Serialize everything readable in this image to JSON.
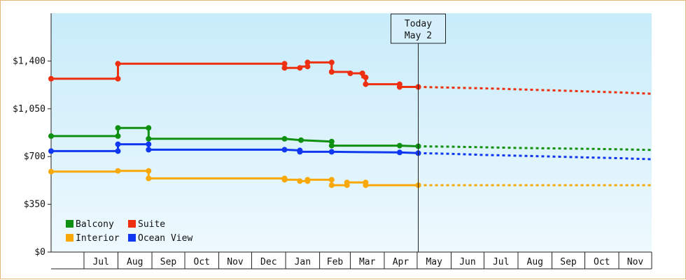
{
  "chart_data": {
    "type": "line",
    "title": "",
    "xlabel": "",
    "ylabel": "",
    "ylim": [
      0,
      1750
    ],
    "xlim": [
      "2024-06-01",
      "2025-12-01"
    ],
    "grid": false,
    "legend_position": "bottom-left",
    "y_ticks": [
      {
        "value": 0,
        "label": "$0"
      },
      {
        "value": 350,
        "label": "$350"
      },
      {
        "value": 700,
        "label": "$700"
      },
      {
        "value": 1050,
        "label": "$1,050"
      },
      {
        "value": 1400,
        "label": "$1,400"
      }
    ],
    "month_labels": [
      {
        "label": "Jul",
        "start": "2024-07-01",
        "end": "2024-08-01"
      },
      {
        "label": "Aug",
        "start": "2024-08-01",
        "end": "2024-09-01"
      },
      {
        "label": "Sep",
        "start": "2024-09-01",
        "end": "2024-10-01"
      },
      {
        "label": "Oct",
        "start": "2024-10-01",
        "end": "2024-11-01"
      },
      {
        "label": "Nov",
        "start": "2024-11-01",
        "end": "2024-12-01"
      },
      {
        "label": "Dec",
        "start": "2024-12-01",
        "end": "2025-01-01"
      },
      {
        "label": "Jan",
        "start": "2025-01-01",
        "end": "2025-02-01"
      },
      {
        "label": "Feb",
        "start": "2025-02-01",
        "end": "2025-03-01"
      },
      {
        "label": "Mar",
        "start": "2025-03-01",
        "end": "2025-04-01"
      },
      {
        "label": "Apr",
        "start": "2025-04-01",
        "end": "2025-05-01"
      },
      {
        "label": "May",
        "start": "2025-05-01",
        "end": "2025-06-01"
      },
      {
        "label": "Jun",
        "start": "2025-06-01",
        "end": "2025-07-01"
      },
      {
        "label": "Jul",
        "start": "2025-07-01",
        "end": "2025-08-01"
      },
      {
        "label": "Aug",
        "start": "2025-08-01",
        "end": "2025-09-01"
      },
      {
        "label": "Sep",
        "start": "2025-09-01",
        "end": "2025-10-01"
      },
      {
        "label": "Oct",
        "start": "2025-10-01",
        "end": "2025-11-01"
      },
      {
        "label": "Nov",
        "start": "2025-11-01",
        "end": "2025-12-01"
      }
    ],
    "today": {
      "line1": "Today",
      "line2": "May 2",
      "date": "2025-05-02"
    },
    "series": [
      {
        "name": "Balcony",
        "color": "#109010",
        "points": [
          [
            "2024-06-01",
            850
          ],
          [
            "2024-08-01",
            850
          ],
          [
            "2024-08-01",
            910
          ],
          [
            "2024-08-29",
            910
          ],
          [
            "2024-08-29",
            830
          ],
          [
            "2024-12-31",
            830
          ],
          [
            "2025-01-15",
            820
          ],
          [
            "2025-02-12",
            810
          ],
          [
            "2025-02-12",
            780
          ],
          [
            "2025-04-15",
            780
          ],
          [
            "2025-05-02",
            775
          ]
        ],
        "markers": [
          [
            "2024-06-01",
            850
          ],
          [
            "2024-08-01",
            850
          ],
          [
            "2024-08-01",
            910
          ],
          [
            "2024-08-29",
            910
          ],
          [
            "2024-08-29",
            830
          ],
          [
            "2024-12-31",
            830
          ],
          [
            "2025-01-15",
            820
          ],
          [
            "2025-02-12",
            810
          ],
          [
            "2025-02-12",
            780
          ],
          [
            "2025-04-15",
            780
          ],
          [
            "2025-05-02",
            775
          ]
        ],
        "forecast": [
          [
            "2025-05-02",
            775
          ],
          [
            "2025-06-01",
            772
          ],
          [
            "2025-07-01",
            768
          ],
          [
            "2025-08-01",
            763
          ],
          [
            "2025-09-01",
            760
          ],
          [
            "2025-10-01",
            757
          ],
          [
            "2025-11-01",
            753
          ],
          [
            "2025-12-01",
            748
          ]
        ]
      },
      {
        "name": "Suite",
        "color": "#ee3010",
        "points": [
          [
            "2024-06-01",
            1270
          ],
          [
            "2024-08-01",
            1270
          ],
          [
            "2024-08-01",
            1380
          ],
          [
            "2024-12-31",
            1380
          ],
          [
            "2024-12-31",
            1350
          ],
          [
            "2025-01-14",
            1350
          ],
          [
            "2025-01-14",
            1360
          ],
          [
            "2025-01-21",
            1360
          ],
          [
            "2025-01-21",
            1390
          ],
          [
            "2025-02-12",
            1390
          ],
          [
            "2025-02-12",
            1320
          ],
          [
            "2025-03-01",
            1320
          ],
          [
            "2025-03-01",
            1310
          ],
          [
            "2025-03-12",
            1310
          ],
          [
            "2025-03-12",
            1280
          ],
          [
            "2025-03-15",
            1280
          ],
          [
            "2025-03-15",
            1230
          ],
          [
            "2025-04-15",
            1230
          ],
          [
            "2025-04-15",
            1210
          ],
          [
            "2025-05-02",
            1210
          ]
        ],
        "markers": [
          [
            "2024-06-01",
            1270
          ],
          [
            "2024-08-01",
            1270
          ],
          [
            "2024-08-01",
            1380
          ],
          [
            "2024-12-31",
            1380
          ],
          [
            "2024-12-31",
            1350
          ],
          [
            "2025-01-14",
            1350
          ],
          [
            "2025-01-21",
            1360
          ],
          [
            "2025-01-21",
            1390
          ],
          [
            "2025-02-12",
            1390
          ],
          [
            "2025-02-12",
            1320
          ],
          [
            "2025-03-01",
            1310
          ],
          [
            "2025-03-12",
            1310
          ],
          [
            "2025-03-15",
            1280
          ],
          [
            "2025-03-15",
            1230
          ],
          [
            "2025-04-15",
            1230
          ],
          [
            "2025-04-15",
            1210
          ],
          [
            "2025-05-02",
            1210
          ]
        ],
        "forecast": [
          [
            "2025-05-02",
            1210
          ],
          [
            "2025-06-01",
            1205
          ],
          [
            "2025-07-01",
            1200
          ],
          [
            "2025-08-01",
            1192
          ],
          [
            "2025-09-01",
            1185
          ],
          [
            "2025-10-01",
            1178
          ],
          [
            "2025-11-01",
            1170
          ],
          [
            "2025-12-01",
            1160
          ]
        ]
      },
      {
        "name": "Interior",
        "color": "#f8a808",
        "points": [
          [
            "2024-06-01",
            590
          ],
          [
            "2024-08-01",
            590
          ],
          [
            "2024-08-01",
            595
          ],
          [
            "2024-08-29",
            595
          ],
          [
            "2024-08-29",
            540
          ],
          [
            "2024-12-31",
            540
          ],
          [
            "2024-12-31",
            530
          ],
          [
            "2025-01-14",
            530
          ],
          [
            "2025-01-14",
            520
          ],
          [
            "2025-01-21",
            520
          ],
          [
            "2025-01-21",
            530
          ],
          [
            "2025-02-12",
            530
          ],
          [
            "2025-02-12",
            490
          ],
          [
            "2025-02-26",
            490
          ],
          [
            "2025-02-26",
            510
          ],
          [
            "2025-03-15",
            510
          ],
          [
            "2025-03-15",
            490
          ],
          [
            "2025-05-02",
            490
          ]
        ],
        "markers": [
          [
            "2024-06-01",
            590
          ],
          [
            "2024-08-01",
            595
          ],
          [
            "2024-08-29",
            595
          ],
          [
            "2024-08-29",
            540
          ],
          [
            "2024-12-31",
            540
          ],
          [
            "2024-12-31",
            530
          ],
          [
            "2025-01-14",
            520
          ],
          [
            "2025-01-21",
            520
          ],
          [
            "2025-01-21",
            530
          ],
          [
            "2025-02-12",
            530
          ],
          [
            "2025-02-12",
            490
          ],
          [
            "2025-02-26",
            490
          ],
          [
            "2025-02-26",
            510
          ],
          [
            "2025-03-15",
            510
          ],
          [
            "2025-03-15",
            490
          ],
          [
            "2025-05-02",
            490
          ]
        ],
        "forecast": [
          [
            "2025-05-02",
            490
          ],
          [
            "2025-12-01",
            490
          ]
        ]
      },
      {
        "name": "Ocean View",
        "color": "#1038f0",
        "points": [
          [
            "2024-06-01",
            740
          ],
          [
            "2024-08-01",
            740
          ],
          [
            "2024-08-01",
            790
          ],
          [
            "2024-08-29",
            790
          ],
          [
            "2024-08-29",
            750
          ],
          [
            "2024-12-31",
            750
          ],
          [
            "2025-01-14",
            745
          ],
          [
            "2025-01-14",
            735
          ],
          [
            "2025-02-12",
            735
          ],
          [
            "2025-04-15",
            730
          ],
          [
            "2025-05-02",
            725
          ]
        ],
        "markers": [
          [
            "2024-06-01",
            740
          ],
          [
            "2024-08-01",
            740
          ],
          [
            "2024-08-01",
            790
          ],
          [
            "2024-08-29",
            790
          ],
          [
            "2024-08-29",
            750
          ],
          [
            "2024-12-31",
            750
          ],
          [
            "2025-01-14",
            745
          ],
          [
            "2025-01-14",
            735
          ],
          [
            "2025-02-12",
            735
          ],
          [
            "2025-04-15",
            730
          ],
          [
            "2025-05-02",
            725
          ]
        ],
        "forecast": [
          [
            "2025-05-02",
            725
          ],
          [
            "2025-06-01",
            720
          ],
          [
            "2025-07-01",
            712
          ],
          [
            "2025-08-01",
            706
          ],
          [
            "2025-09-01",
            700
          ],
          [
            "2025-10-01",
            694
          ],
          [
            "2025-11-01",
            688
          ],
          [
            "2025-12-01",
            680
          ]
        ]
      }
    ],
    "legend": [
      {
        "name": "Balcony",
        "color": "#109010"
      },
      {
        "name": "Suite",
        "color": "#ee3010"
      },
      {
        "name": "Interior",
        "color": "#f8a808"
      },
      {
        "name": "Ocean View",
        "color": "#1038f0"
      }
    ]
  }
}
